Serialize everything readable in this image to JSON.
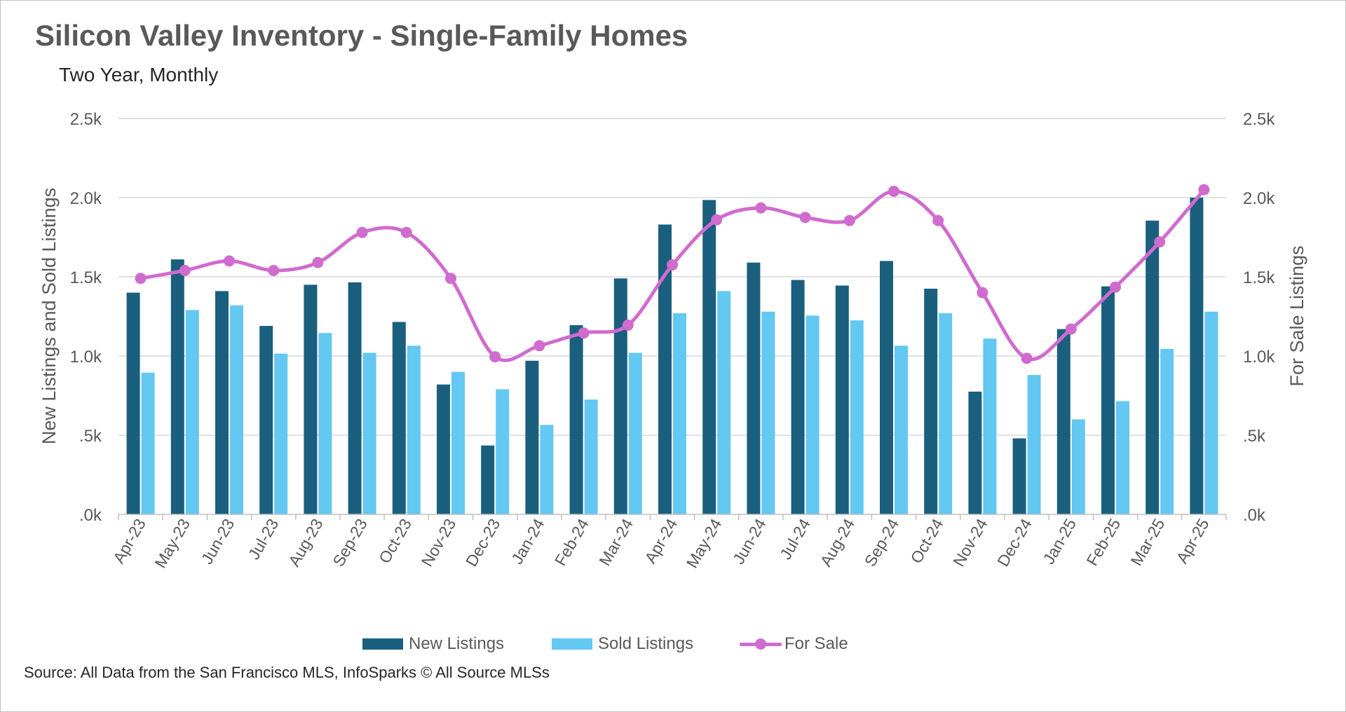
{
  "chart_data": {
    "type": "bar",
    "title": "Silicon Valley Inventory - Single-Family Homes",
    "subtitle": "Two Year, Monthly",
    "source": "Source: All Data from the San Francisco MLS, InfoSparks © All Source MLSs",
    "ylabel_left": "New Listings and Sold Listings",
    "ylabel_right": "For Sale Listings",
    "ylim": [
      0,
      2500
    ],
    "y2lim": [
      0,
      2500
    ],
    "y_ticks": [
      ".0k",
      ".5k",
      "1.0k",
      "1.5k",
      "2.0k",
      "2.5k"
    ],
    "y2_ticks": [
      ".0k",
      ".5k",
      "1.0k",
      "1.5k",
      "2.0k",
      "2.5k"
    ],
    "grid": true,
    "legend_position": "bottom",
    "categories": [
      "Apr-23",
      "May-23",
      "Jun-23",
      "Jul-23",
      "Aug-23",
      "Sep-23",
      "Oct-23",
      "Nov-23",
      "Dec-23",
      "Jan-24",
      "Feb-24",
      "Mar-24",
      "Apr-24",
      "May-24",
      "Jun-24",
      "Jul-24",
      "Aug-24",
      "Sep-24",
      "Oct-24",
      "Nov-24",
      "Dec-24",
      "Jan-25",
      "Feb-25",
      "Mar-25",
      "Apr-25"
    ],
    "series": [
      {
        "name": "New Listings",
        "type": "bar",
        "axis": "left",
        "color": "#1b5f7f",
        "values": [
          1400,
          1610,
          1410,
          1190,
          1450,
          1465,
          1215,
          820,
          435,
          970,
          1195,
          1490,
          1830,
          1985,
          1590,
          1480,
          1445,
          1600,
          1425,
          775,
          480,
          1170,
          1440,
          1855,
          2000
        ]
      },
      {
        "name": "Sold Listings",
        "type": "bar",
        "axis": "left",
        "color": "#63c8f2",
        "values": [
          895,
          1290,
          1320,
          1015,
          1145,
          1020,
          1065,
          900,
          790,
          565,
          725,
          1020,
          1270,
          1410,
          1280,
          1255,
          1225,
          1065,
          1270,
          1110,
          880,
          600,
          715,
          1045,
          1280
        ]
      },
      {
        "name": "For Sale",
        "type": "line",
        "axis": "right",
        "color": "#d06bcf",
        "values": [
          1490,
          1540,
          1600,
          1540,
          1590,
          1780,
          1780,
          1490,
          995,
          1065,
          1145,
          1195,
          1575,
          1860,
          1935,
          1875,
          1855,
          2040,
          1855,
          1400,
          985,
          1170,
          1435,
          1720,
          2050
        ]
      }
    ]
  }
}
